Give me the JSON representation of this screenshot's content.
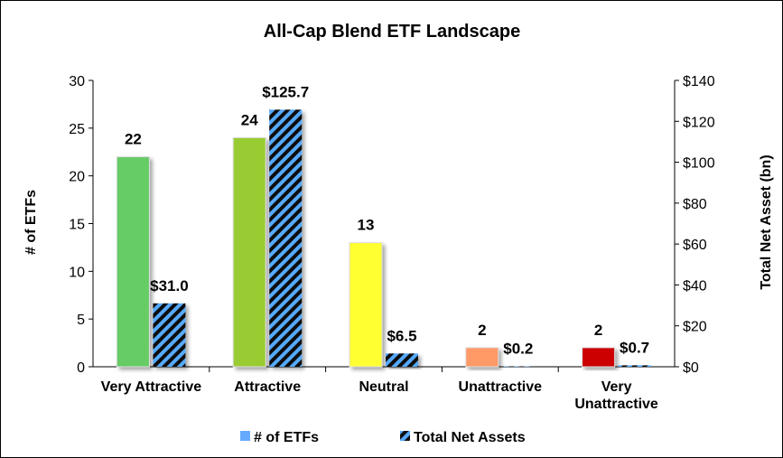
{
  "chart_data": {
    "type": "bar",
    "title": "All-Cap Blend ETF Landscape",
    "categories": [
      [
        "Very Attractive"
      ],
      [
        "Attractive"
      ],
      [
        "Neutral"
      ],
      [
        "Unattractive"
      ],
      [
        "Very",
        "Unattractive"
      ]
    ],
    "ylabel": "# of ETFs",
    "y2label": "Total Net Asset (bn)",
    "ylim": [
      0,
      30
    ],
    "y2lim": [
      0,
      140
    ],
    "yticks": [
      "0",
      "5",
      "10",
      "15",
      "20",
      "25",
      "30"
    ],
    "y2ticks": [
      "$0",
      "$20",
      "$40",
      "$60",
      "$80",
      "$100",
      "$120",
      "$140"
    ],
    "legend_position": "bottom",
    "grid": false,
    "series": [
      {
        "name": "# of ETFs",
        "axis": "left",
        "values": [
          22,
          24,
          13,
          2,
          2
        ],
        "labels": [
          "22",
          "24",
          "13",
          "2",
          "2"
        ],
        "colors": [
          "#66cc66",
          "#99cc33",
          "#ffff33",
          "#ff9966",
          "#cc0000"
        ],
        "legend_color": "#66aaff"
      },
      {
        "name": "Total Net Assets",
        "axis": "right",
        "values": [
          31.0,
          125.7,
          6.5,
          0.2,
          0.7
        ],
        "labels": [
          "$31.0",
          "$125.7",
          "$6.5",
          "$0.2",
          "$0.7"
        ],
        "stripe_colors": [
          "#111111",
          "#55aaff"
        ]
      }
    ]
  }
}
